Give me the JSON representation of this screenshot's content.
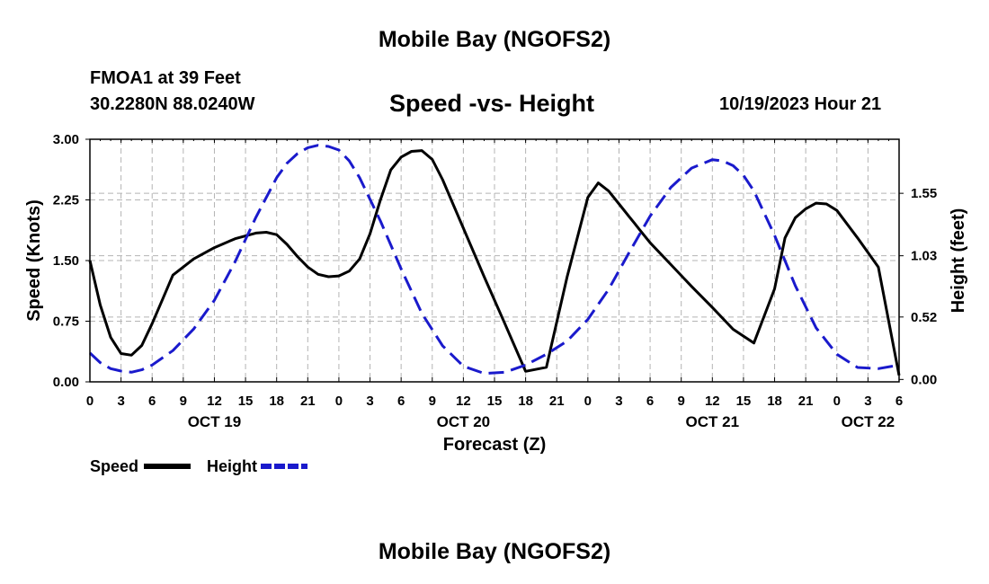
{
  "header": {
    "title": "Mobile Bay (NGOFS2)",
    "station": "FMOA1 at 39 Feet",
    "coordinates": "30.2280N  88.0240W",
    "subtitle": "Speed -vs- Height",
    "run_time": "10/19/2023 Hour 21"
  },
  "footer": {
    "title": "Mobile Bay (NGOFS2)"
  },
  "chart_data": {
    "type": "line",
    "title": "Speed -vs- Height",
    "xlabel": "Forecast (Z)",
    "ylabel": "Speed (Knots)",
    "y2label": "Height (feet)",
    "xlim": [
      0,
      78
    ],
    "ylim": [
      0,
      3.0
    ],
    "y2lim": [
      -0.02,
      2.0
    ],
    "x_ticks": [
      0,
      3,
      6,
      9,
      12,
      15,
      18,
      21,
      24,
      27,
      30,
      33,
      36,
      39,
      42,
      45,
      48,
      51,
      54,
      57,
      60,
      63,
      66,
      69,
      72,
      75,
      78
    ],
    "x_tick_labels": [
      "0",
      "3",
      "6",
      "9",
      "12",
      "15",
      "18",
      "21",
      "0",
      "3",
      "6",
      "9",
      "12",
      "15",
      "18",
      "21",
      "0",
      "3",
      "6",
      "9",
      "12",
      "15",
      "18",
      "21",
      "0",
      "3",
      "6"
    ],
    "date_labels": [
      {
        "x": 12,
        "label": "OCT 19"
      },
      {
        "x": 36,
        "label": "OCT 20"
      },
      {
        "x": 60,
        "label": "OCT 21"
      },
      {
        "x": 75,
        "label": "OCT 22"
      }
    ],
    "y_ticks": [
      "0.00",
      "0.75",
      "1.50",
      "2.25",
      "3.00"
    ],
    "y2_ticks": [
      "0.00",
      "0.52",
      "1.03",
      "1.55"
    ],
    "grid": true,
    "legend_position": "bottom-left",
    "series": [
      {
        "name": "Speed",
        "axis": "left",
        "color": "#000000",
        "style": "solid",
        "x": [
          0,
          1,
          2,
          3,
          4,
          5,
          6,
          7,
          8,
          10,
          12,
          14,
          16,
          17,
          18,
          19,
          20,
          21,
          22,
          23,
          24,
          25,
          26,
          27,
          28,
          29,
          30,
          31,
          32,
          33,
          34,
          35,
          36,
          38,
          40,
          42,
          44,
          46,
          48,
          49,
          50,
          51,
          52,
          52.5,
          53,
          54,
          56,
          58,
          60,
          62,
          64,
          66,
          67,
          68,
          69,
          70,
          71,
          72,
          74,
          76,
          78
        ],
        "y": [
          1.5,
          0.95,
          0.55,
          0.35,
          0.33,
          0.45,
          0.72,
          1.02,
          1.32,
          1.52,
          1.66,
          1.77,
          1.84,
          1.85,
          1.82,
          1.7,
          1.55,
          1.42,
          1.33,
          1.3,
          1.31,
          1.37,
          1.52,
          1.83,
          2.25,
          2.62,
          2.78,
          2.85,
          2.86,
          2.75,
          2.5,
          2.2,
          1.9,
          1.3,
          0.72,
          0.13,
          0.18,
          1.3,
          2.28,
          2.46,
          2.36,
          2.2,
          2.04,
          1.96,
          1.88,
          1.72,
          1.45,
          1.18,
          0.92,
          0.65,
          0.48,
          1.15,
          1.78,
          2.03,
          2.14,
          2.21,
          2.2,
          2.12,
          1.78,
          1.42,
          0.08
        ]
      },
      {
        "name": "Height",
        "axis": "right",
        "color": "#1a1acc",
        "style": "dashed",
        "x": [
          0,
          1,
          2,
          3,
          4,
          5,
          6,
          8,
          10,
          12,
          14,
          16,
          18,
          19,
          20,
          21,
          22,
          23,
          24,
          25,
          26,
          28,
          30,
          32,
          34,
          36,
          38,
          40,
          42,
          44,
          46,
          48,
          50,
          52,
          54,
          56,
          58,
          60,
          61,
          62,
          63,
          64,
          66,
          68,
          70,
          72,
          74,
          76,
          78
        ],
        "y": [
          0.22,
          0.14,
          0.09,
          0.07,
          0.06,
          0.08,
          0.12,
          0.24,
          0.42,
          0.66,
          0.98,
          1.35,
          1.68,
          1.8,
          1.88,
          1.93,
          1.95,
          1.94,
          1.91,
          1.82,
          1.68,
          1.32,
          0.92,
          0.55,
          0.28,
          0.11,
          0.05,
          0.06,
          0.12,
          0.21,
          0.32,
          0.5,
          0.75,
          1.06,
          1.36,
          1.6,
          1.76,
          1.83,
          1.82,
          1.78,
          1.7,
          1.57,
          1.2,
          0.78,
          0.43,
          0.21,
          0.1,
          0.09,
          0.12
        ]
      }
    ]
  }
}
